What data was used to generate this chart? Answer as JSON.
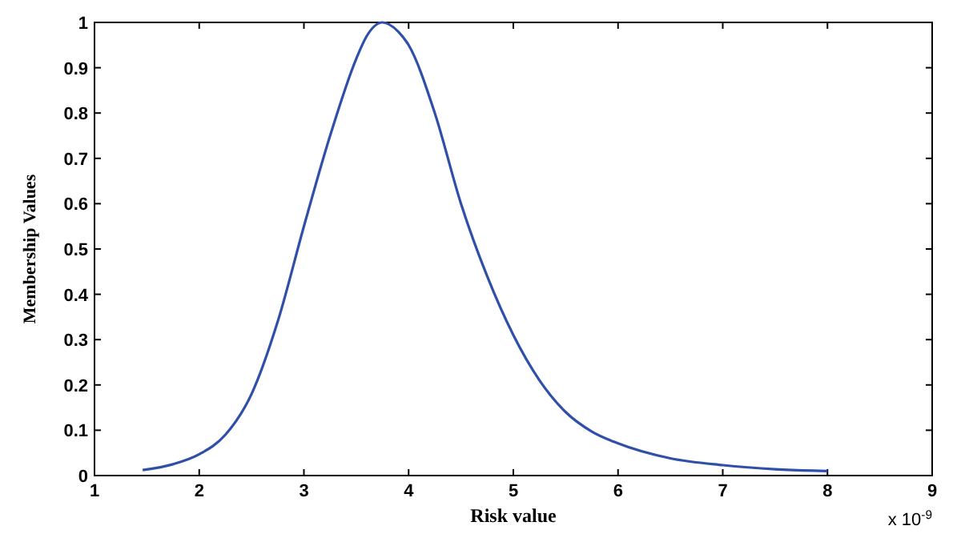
{
  "chart_data": {
    "type": "line",
    "xlabel": "Risk value",
    "ylabel": "Membership Values",
    "annotations": [
      "x 10$^{-9}$"
    ],
    "xlim": [
      1,
      9
    ],
    "xticks": [
      1,
      2,
      3,
      4,
      5,
      6,
      7,
      8,
      9
    ],
    "ylim": [
      0,
      1
    ],
    "yticks": [
      0,
      0.1,
      0.2,
      0.3,
      0.4,
      0.5,
      0.6,
      0.7,
      0.8,
      0.9,
      1
    ],
    "grid": false,
    "marker": "none",
    "line_style": "solid",
    "series": [
      {
        "color": "#2f4fa8",
        "x": [
          1.46,
          1.75,
          2,
          2.25,
          2.5,
          2.75,
          3,
          3.25,
          3.5,
          3.6,
          3.75,
          3.9,
          4,
          4.25,
          4.5,
          4.75,
          5,
          5.25,
          5.5,
          5.75,
          6,
          6.5,
          7,
          7.5,
          8
        ],
        "values": [
          0.012,
          0.025,
          0.047,
          0.09,
          0.18,
          0.34,
          0.55,
          0.75,
          0.92,
          0.97,
          1,
          0.98,
          0.95,
          0.8,
          0.6,
          0.44,
          0.31,
          0.21,
          0.14,
          0.097,
          0.071,
          0.038,
          0.023,
          0.014,
          0.01
        ]
      }
    ]
  }
}
